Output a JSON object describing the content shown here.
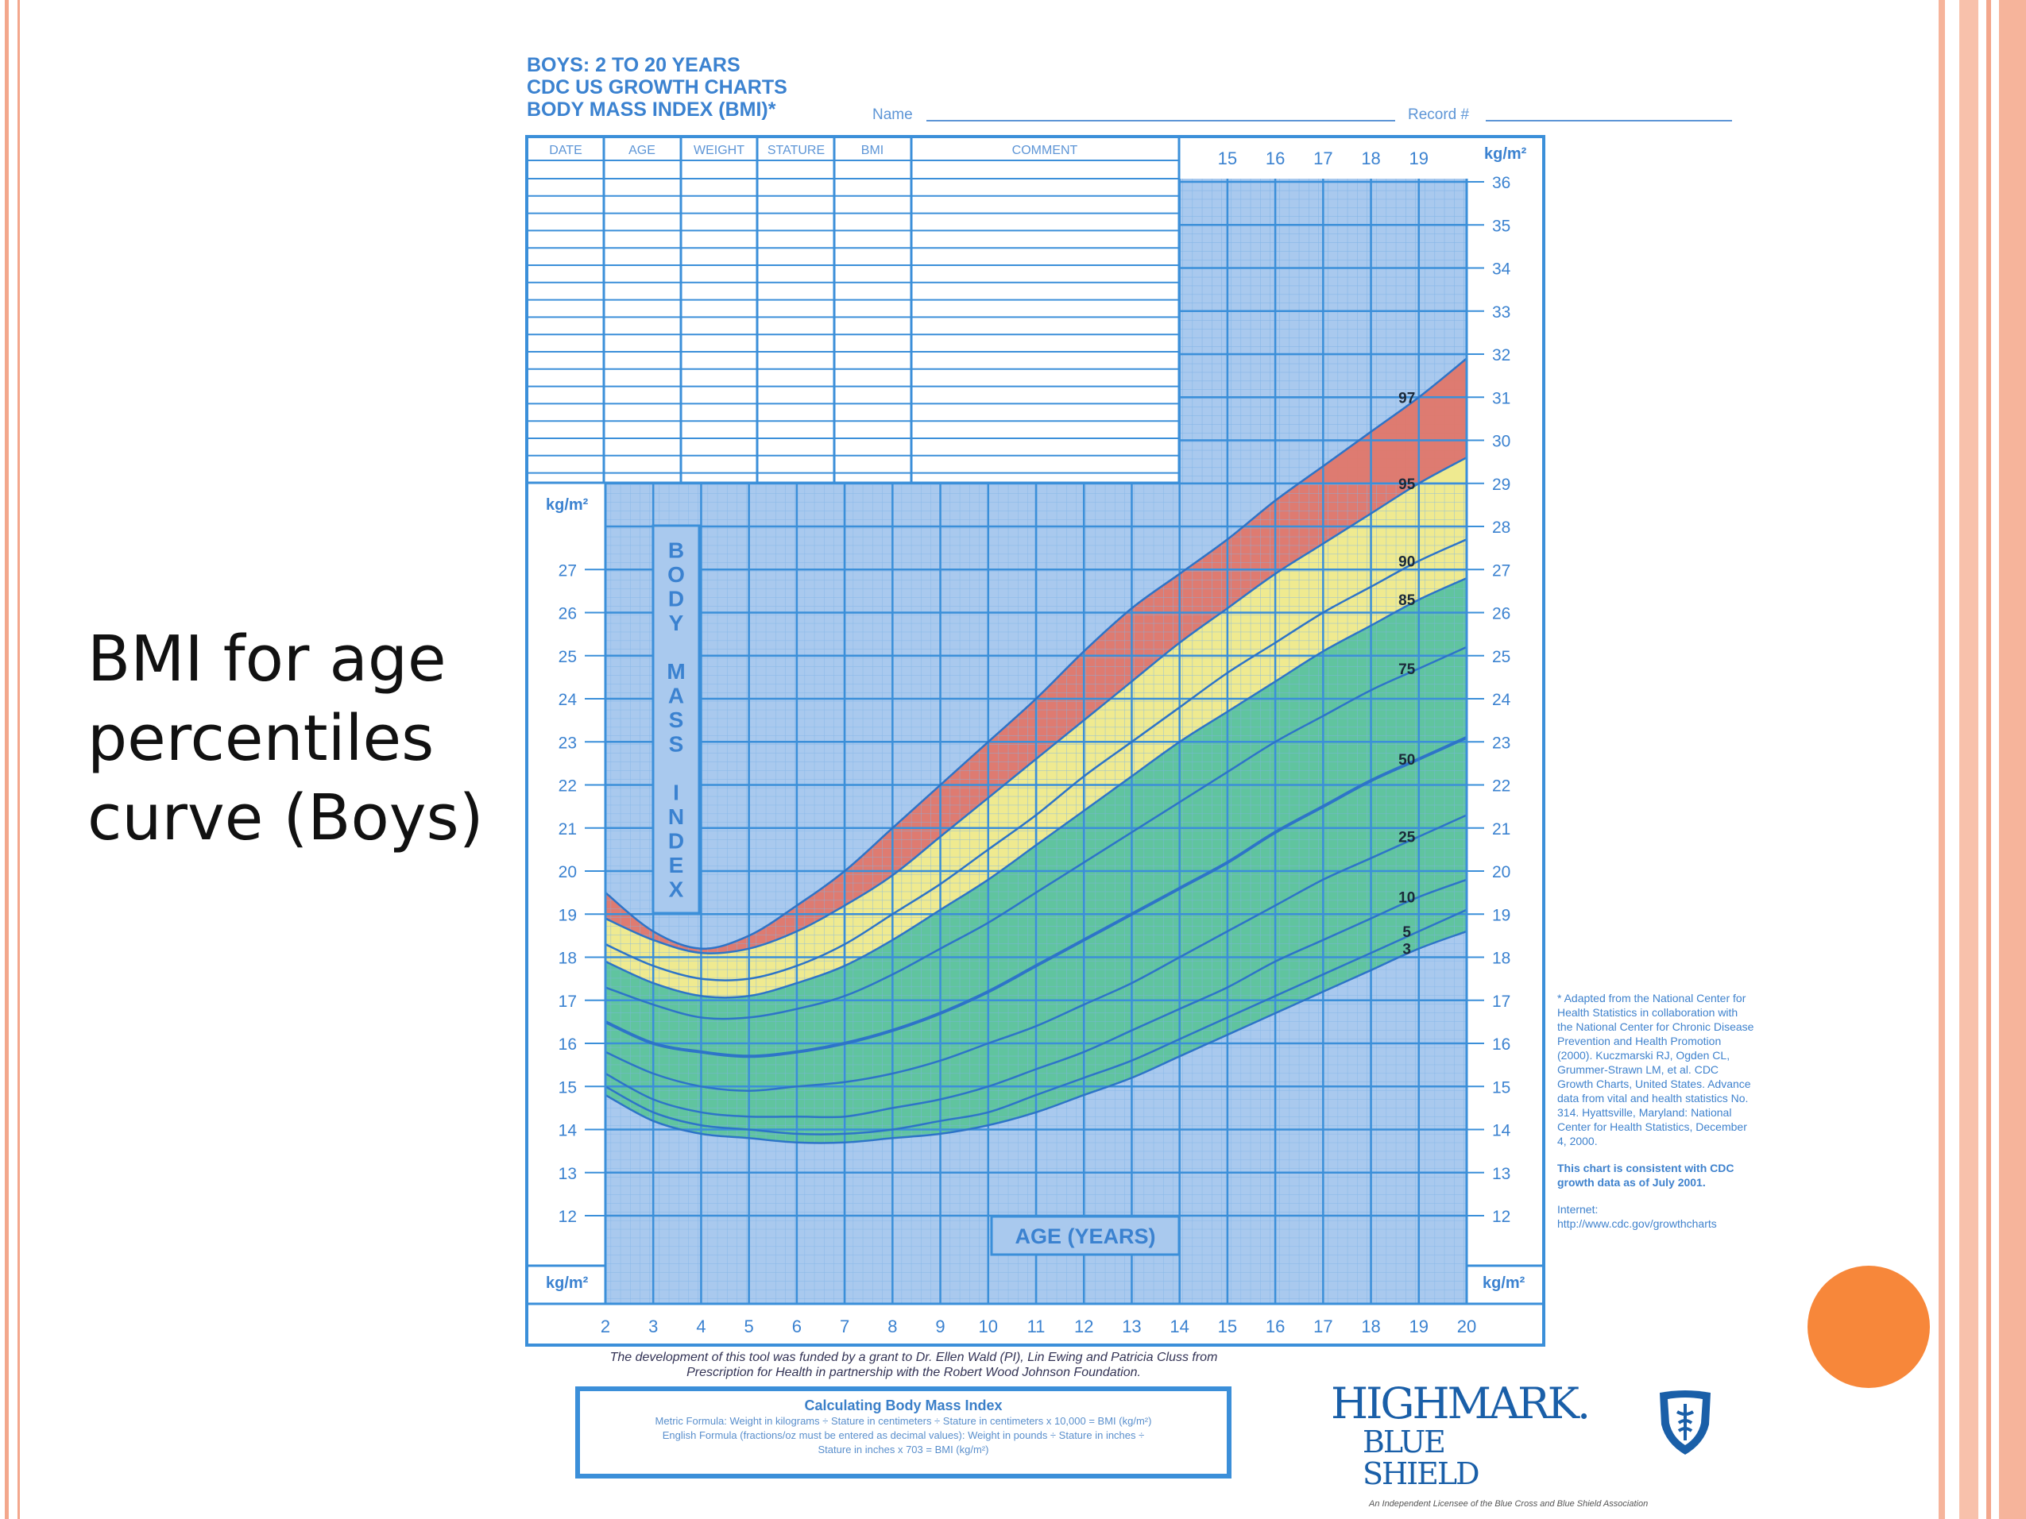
{
  "slide": {
    "title_lines": [
      "BMI for age",
      "percentiles",
      "curve (Boys)"
    ],
    "colors": {
      "frame": "#f3a78c",
      "dot": "#f7873a",
      "chart_blue": "#3b8fd9",
      "red_band": "#e07769",
      "yellow_band": "#f2ec8a",
      "green_band": "#5cc49a"
    }
  },
  "chart_header": {
    "line1": "BOYS: 2 TO 20 YEARS",
    "line2": "CDC US GROWTH CHARTS",
    "line3": "BODY MASS INDEX (BMI)*",
    "name_label": "Name",
    "record_label": "Record #"
  },
  "record_table": {
    "columns": [
      "DATE",
      "AGE",
      "WEIGHT",
      "STATURE",
      "BMI",
      "COMMENT"
    ]
  },
  "chart_data": {
    "type": "area",
    "x_axis_title": "AGE (YEARS)",
    "y_axis_title": "BODY MASS INDEX",
    "y_unit": "kg/m²",
    "xlim": [
      2,
      20
    ],
    "ylim": [
      11,
      36
    ],
    "x_ticks": [
      2,
      3,
      4,
      5,
      6,
      7,
      8,
      9,
      10,
      11,
      12,
      13,
      14,
      15,
      16,
      17,
      18,
      19,
      20
    ],
    "top_x_ticks": [
      15,
      16,
      17,
      18,
      19
    ],
    "left_y_ticks": [
      12,
      13,
      14,
      15,
      16,
      17,
      18,
      19,
      20,
      21,
      22,
      23,
      24,
      25,
      26,
      27
    ],
    "right_y_ticks": [
      12,
      13,
      14,
      15,
      16,
      17,
      18,
      19,
      20,
      21,
      22,
      23,
      24,
      25,
      26,
      27,
      28,
      29,
      30,
      31,
      32,
      33,
      34,
      35,
      36
    ],
    "x": [
      2,
      3,
      4,
      5,
      6,
      7,
      8,
      9,
      10,
      11,
      12,
      13,
      14,
      15,
      16,
      17,
      18,
      19,
      20
    ],
    "series": [
      {
        "name": "3",
        "values": [
          14.8,
          14.2,
          13.9,
          13.8,
          13.7,
          13.7,
          13.8,
          13.9,
          14.1,
          14.4,
          14.8,
          15.2,
          15.7,
          16.2,
          16.7,
          17.2,
          17.7,
          18.2,
          18.6
        ]
      },
      {
        "name": "5",
        "values": [
          15.0,
          14.4,
          14.1,
          14.0,
          13.9,
          13.9,
          14.0,
          14.2,
          14.4,
          14.8,
          15.2,
          15.6,
          16.1,
          16.6,
          17.1,
          17.6,
          18.1,
          18.6,
          19.1
        ]
      },
      {
        "name": "10",
        "values": [
          15.3,
          14.7,
          14.4,
          14.3,
          14.3,
          14.3,
          14.5,
          14.7,
          15.0,
          15.4,
          15.8,
          16.3,
          16.8,
          17.3,
          17.9,
          18.4,
          18.9,
          19.4,
          19.8
        ]
      },
      {
        "name": "25",
        "values": [
          15.8,
          15.3,
          15.0,
          14.9,
          15.0,
          15.1,
          15.3,
          15.6,
          16.0,
          16.4,
          16.9,
          17.4,
          18.0,
          18.6,
          19.2,
          19.8,
          20.3,
          20.8,
          21.3
        ]
      },
      {
        "name": "50",
        "values": [
          16.5,
          16.0,
          15.8,
          15.7,
          15.8,
          16.0,
          16.3,
          16.7,
          17.2,
          17.8,
          18.4,
          19.0,
          19.6,
          20.2,
          20.9,
          21.5,
          22.1,
          22.6,
          23.1
        ]
      },
      {
        "name": "75",
        "values": [
          17.3,
          16.9,
          16.6,
          16.6,
          16.8,
          17.1,
          17.6,
          18.2,
          18.8,
          19.5,
          20.2,
          20.9,
          21.6,
          22.3,
          23.0,
          23.6,
          24.2,
          24.7,
          25.2
        ]
      },
      {
        "name": "85",
        "values": [
          17.9,
          17.4,
          17.1,
          17.1,
          17.4,
          17.8,
          18.4,
          19.1,
          19.8,
          20.6,
          21.4,
          22.2,
          23.0,
          23.7,
          24.4,
          25.1,
          25.7,
          26.3,
          26.8
        ]
      },
      {
        "name": "90",
        "values": [
          18.3,
          17.8,
          17.5,
          17.5,
          17.8,
          18.3,
          19.0,
          19.7,
          20.5,
          21.3,
          22.2,
          23.0,
          23.8,
          24.6,
          25.3,
          26.0,
          26.6,
          27.2,
          27.7
        ]
      },
      {
        "name": "95",
        "values": [
          18.9,
          18.4,
          18.1,
          18.2,
          18.6,
          19.2,
          19.9,
          20.8,
          21.7,
          22.6,
          23.5,
          24.4,
          25.3,
          26.1,
          26.9,
          27.6,
          28.3,
          29.0,
          29.6
        ]
      },
      {
        "name": "97",
        "values": [
          19.5,
          18.6,
          18.2,
          18.5,
          19.2,
          20.0,
          21.0,
          22.0,
          23.0,
          24.0,
          25.1,
          26.1,
          26.9,
          27.7,
          28.6,
          29.4,
          30.2,
          31.0,
          31.9
        ]
      }
    ]
  },
  "footer": {
    "funding_line1": "The development of this tool was funded by a grant to Dr. Ellen Wald (PI), Lin Ewing and Patricia Cluss from",
    "funding_line2": "Prescription for Health in partnership with the Robert Wood Johnson Foundation.",
    "bmi_title": "Calculating Body Mass Index",
    "bmi_metric": "Metric Formula: Weight in kilograms ÷ Stature in centimeters ÷ Stature in centimeters x 10,000 = BMI (kg/m²)",
    "bmi_english1": "English Formula (fractions/oz must be entered as decimal values): Weight in pounds ÷ Stature in inches ÷",
    "bmi_english2": "Stature in inches x 703 = BMI (kg/m²)",
    "logo_main": "HIGHMARK.",
    "logo_sub": "BLUE SHIELD",
    "logo_tag": "An Independent Licensee of the Blue Cross and Blue Shield Association"
  },
  "side_note": {
    "source": "* Adapted from the National Center for Health Statistics in collaboration with the National Center for Chronic Disease Prevention and Health Promotion (2000). Kuczmarski RJ, Ogden CL, Grummer-Strawn LM, et al. CDC Growth Charts, United States. Advance data from vital and health statistics No. 314. Hyattsville, Maryland: National Center for Health Statistics, December 4, 2000.",
    "consistent": "This chart is consistent with CDC growth data as of July 2001.",
    "internet_label": "Internet:",
    "internet_url": "http://www.cdc.gov/growthcharts"
  }
}
